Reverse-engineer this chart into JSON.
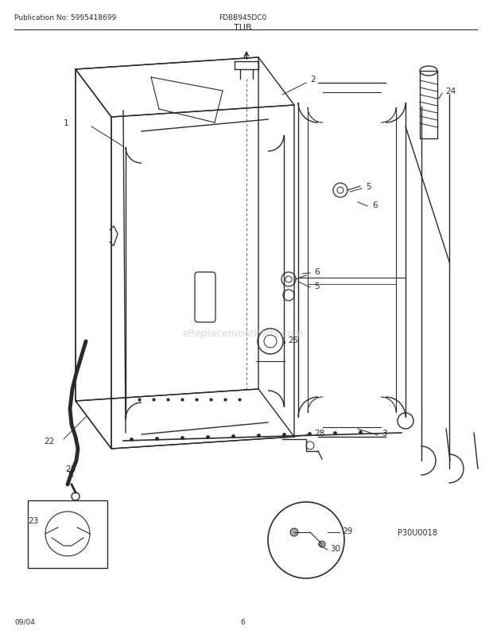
{
  "title": "TUB",
  "pub_no": "Publication No: 5995418699",
  "model": "FDBB945DC0",
  "date": "09/04",
  "page": "6",
  "part_code": "P30U0018",
  "bg_color": "#ffffff",
  "line_color": "#2a2a2a",
  "watermark": "eReplacementParts.com",
  "fig_w": 6.2,
  "fig_h": 8.03,
  "dpi": 100
}
